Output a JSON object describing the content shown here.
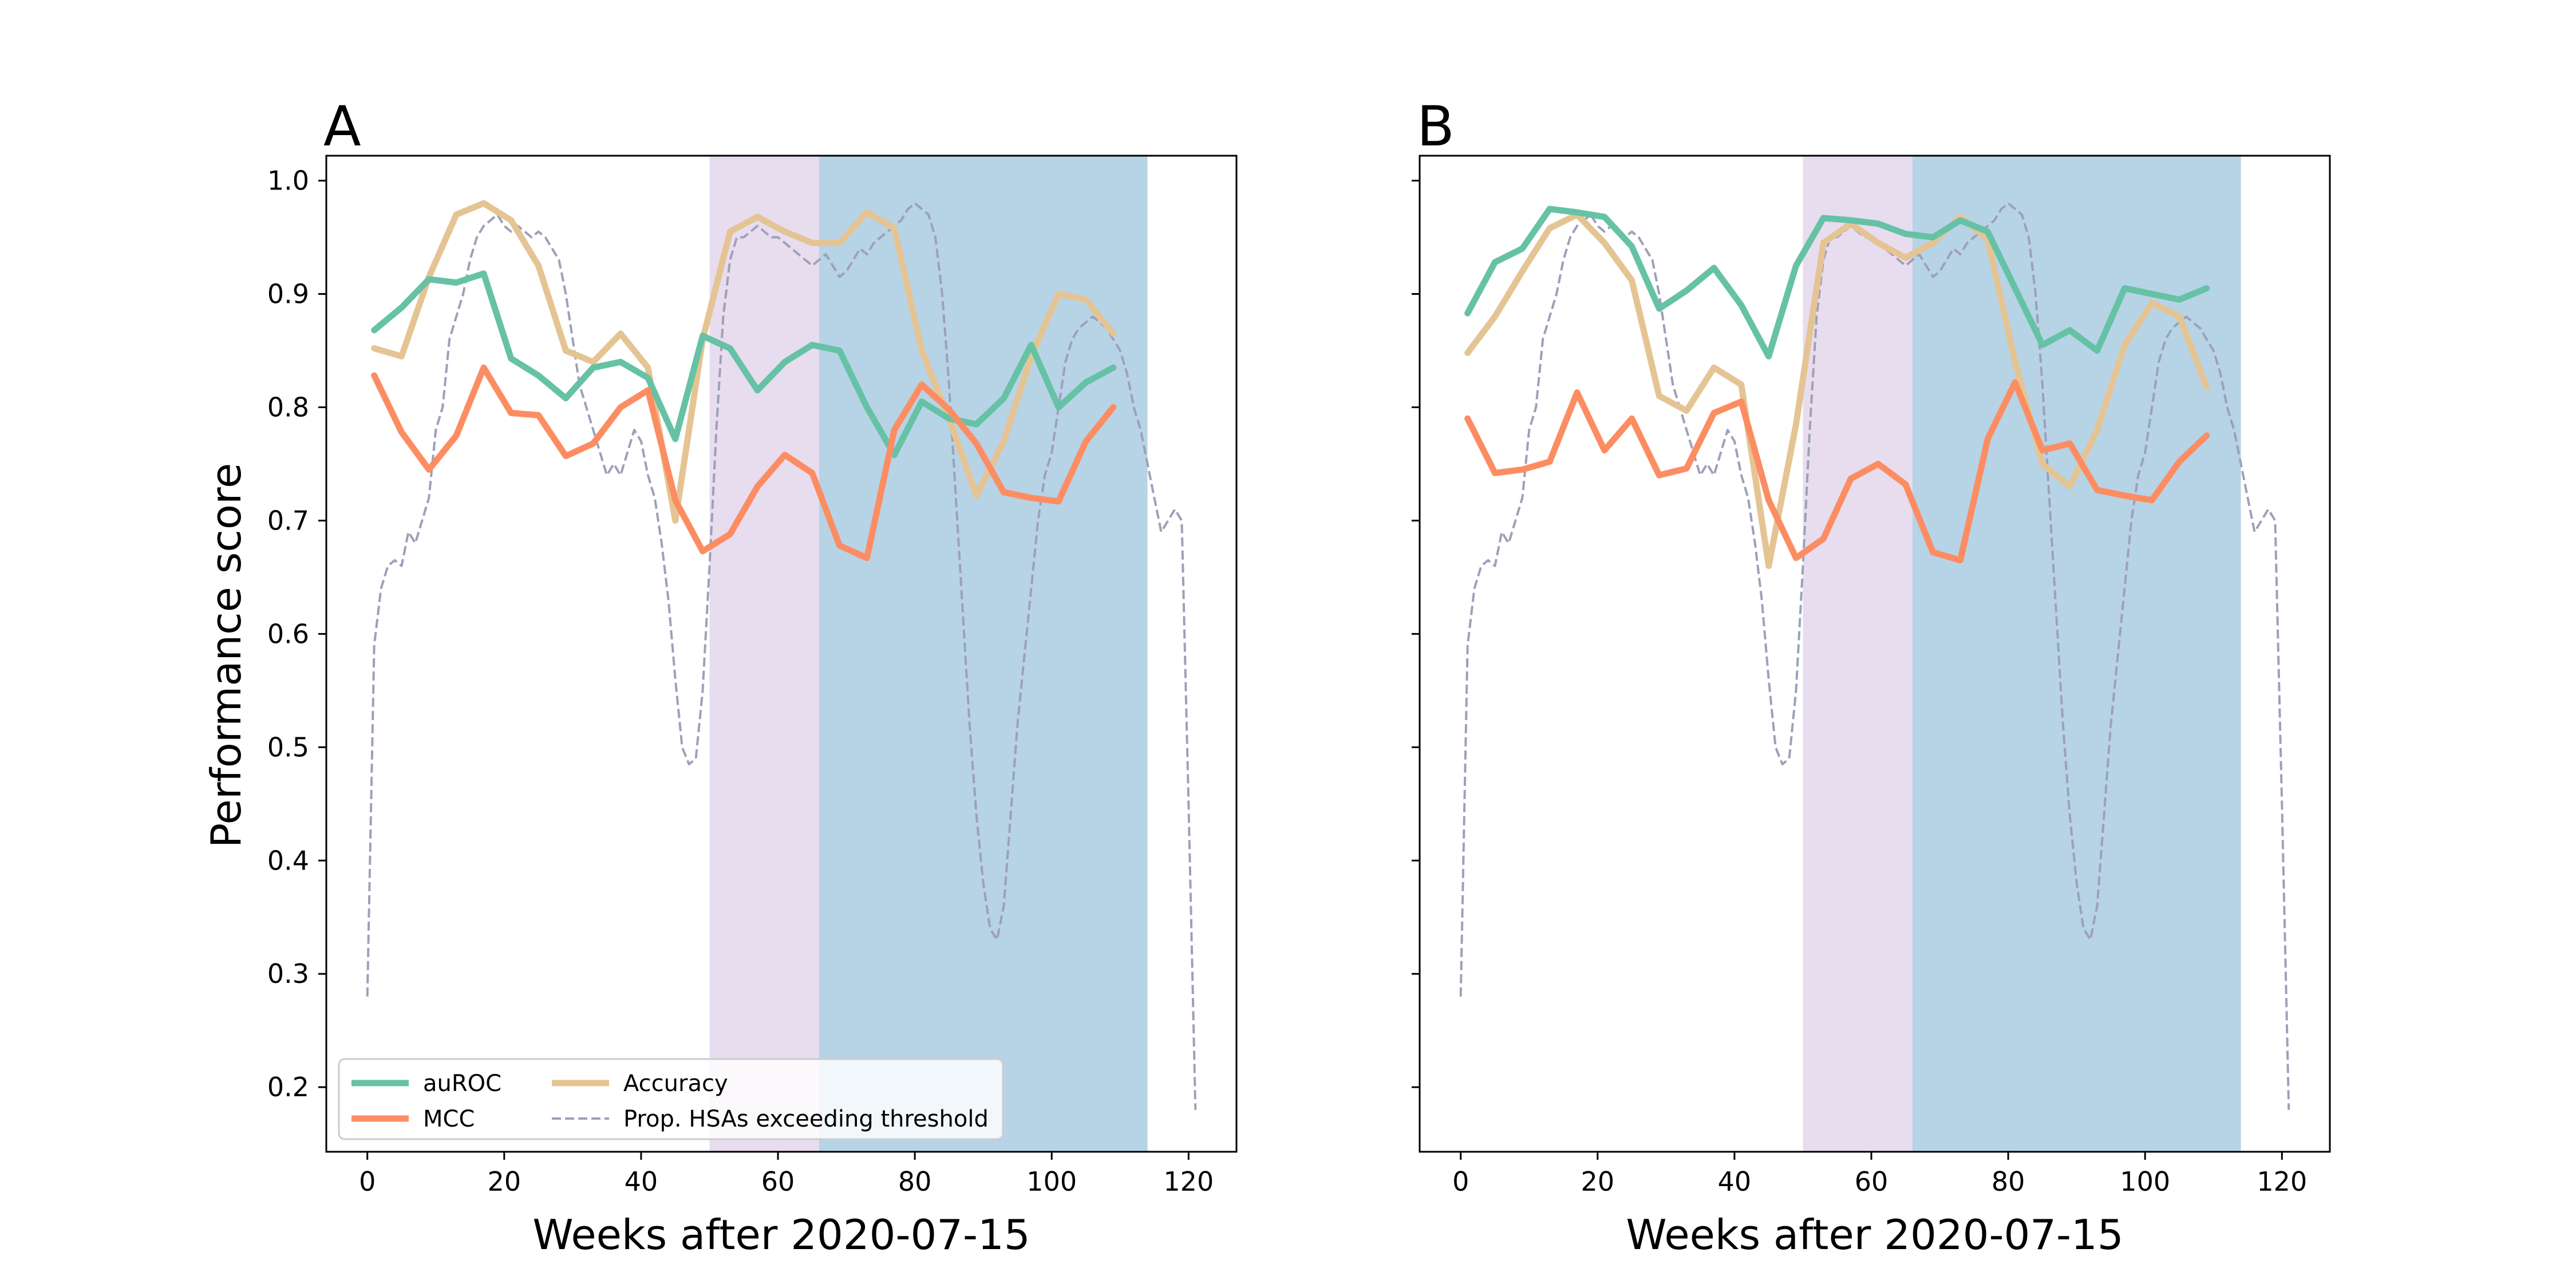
{
  "figure": {
    "ylabel": "Performance score",
    "legend": {
      "placement": "lower-left",
      "entries": [
        {
          "key": "auroc",
          "label": "auROC"
        },
        {
          "key": "mcc",
          "label": "MCC"
        },
        {
          "key": "accuracy",
          "label": "Accuracy"
        },
        {
          "key": "prop",
          "label": "Prop. HSAs exceeding threshold"
        }
      ]
    },
    "colors": {
      "auroc": "#66c2a5",
      "mcc": "#fc8d62",
      "accuracy": "#e5c494",
      "prop": "#9da0b8",
      "span_1": "#e8dcef",
      "span_2": "#b7d3e6"
    }
  },
  "chart_data": [
    {
      "type": "line",
      "panel_label": "A",
      "xlabel": "Weeks after 2020-07-15",
      "ylabel": "Performance score",
      "xlim": [
        -6,
        127
      ],
      "ylim": [
        0.143,
        1.022
      ],
      "xticks": [
        0,
        20,
        40,
        60,
        80,
        100,
        120
      ],
      "yticks": [
        0.2,
        0.3,
        0.4,
        0.5,
        0.6,
        0.7,
        0.8,
        0.9,
        1.0
      ],
      "shaded_spans": [
        {
          "x0": 50,
          "x1": 66,
          "color": "span_1"
        },
        {
          "x0": 66,
          "x1": 114,
          "color": "span_2"
        }
      ],
      "legend_shown": true,
      "series": [
        {
          "key": "prop",
          "style": "dashed",
          "x": [
            0,
            1,
            2,
            3,
            4,
            5,
            6,
            7,
            8,
            9,
            10,
            11,
            12,
            13,
            14,
            15,
            16,
            17,
            18,
            19,
            20,
            21,
            22,
            23,
            24,
            25,
            26,
            27,
            28,
            29,
            30,
            31,
            32,
            33,
            34,
            35,
            36,
            37,
            38,
            39,
            40,
            41,
            42,
            43,
            44,
            45,
            46,
            47,
            48,
            49,
            50,
            51,
            52,
            53,
            54,
            55,
            56,
            57,
            58,
            59,
            60,
            61,
            62,
            63,
            64,
            65,
            66,
            67,
            68,
            69,
            70,
            71,
            72,
            73,
            74,
            75,
            76,
            77,
            78,
            79,
            80,
            81,
            82,
            83,
            84,
            85,
            86,
            87,
            88,
            89,
            90,
            91,
            92,
            93,
            94,
            95,
            96,
            97,
            98,
            99,
            100,
            101,
            102,
            103,
            104,
            105,
            106,
            107,
            108,
            109,
            110,
            111,
            112,
            113,
            114,
            115,
            116,
            117,
            118,
            119,
            120,
            121
          ],
          "values": [
            0.28,
            0.59,
            0.64,
            0.66,
            0.665,
            0.66,
            0.69,
            0.68,
            0.7,
            0.72,
            0.78,
            0.8,
            0.86,
            0.88,
            0.9,
            0.93,
            0.95,
            0.96,
            0.965,
            0.97,
            0.96,
            0.955,
            0.96,
            0.955,
            0.95,
            0.955,
            0.95,
            0.94,
            0.93,
            0.9,
            0.86,
            0.82,
            0.8,
            0.78,
            0.76,
            0.74,
            0.75,
            0.74,
            0.76,
            0.78,
            0.77,
            0.74,
            0.72,
            0.68,
            0.63,
            0.56,
            0.5,
            0.485,
            0.49,
            0.55,
            0.66,
            0.78,
            0.88,
            0.93,
            0.95,
            0.95,
            0.955,
            0.96,
            0.955,
            0.95,
            0.95,
            0.945,
            0.94,
            0.935,
            0.93,
            0.925,
            0.93,
            0.935,
            0.925,
            0.915,
            0.92,
            0.93,
            0.94,
            0.935,
            0.945,
            0.95,
            0.955,
            0.96,
            0.965,
            0.975,
            0.98,
            0.975,
            0.97,
            0.95,
            0.9,
            0.82,
            0.72,
            0.62,
            0.52,
            0.44,
            0.38,
            0.34,
            0.33,
            0.36,
            0.44,
            0.52,
            0.58,
            0.64,
            0.7,
            0.74,
            0.76,
            0.8,
            0.84,
            0.86,
            0.87,
            0.875,
            0.88,
            0.875,
            0.87,
            0.86,
            0.85,
            0.83,
            0.8,
            0.78,
            0.75,
            0.72,
            0.69,
            0.7,
            0.71,
            0.7,
            0.45,
            0.18
          ]
        },
        {
          "key": "accuracy",
          "style": "solid",
          "x": [
            1,
            5,
            9,
            13,
            17,
            21,
            25,
            29,
            33,
            37,
            41,
            45,
            49,
            53,
            57,
            61,
            65,
            69,
            73,
            77,
            81,
            85,
            89,
            93,
            97,
            101,
            105,
            109
          ],
          "values": [
            0.852,
            0.845,
            0.915,
            0.97,
            0.98,
            0.965,
            0.925,
            0.85,
            0.84,
            0.865,
            0.835,
            0.7,
            0.86,
            0.955,
            0.968,
            0.955,
            0.945,
            0.945,
            0.972,
            0.958,
            0.85,
            0.79,
            0.722,
            0.77,
            0.845,
            0.9,
            0.895,
            0.865
          ]
        },
        {
          "key": "auroc",
          "style": "solid",
          "x": [
            1,
            5,
            9,
            13,
            17,
            21,
            25,
            29,
            33,
            37,
            41,
            45,
            49,
            53,
            57,
            61,
            65,
            69,
            73,
            77,
            81,
            85,
            89,
            93,
            97,
            101,
            105,
            109
          ],
          "values": [
            0.868,
            0.888,
            0.913,
            0.91,
            0.918,
            0.843,
            0.828,
            0.808,
            0.835,
            0.84,
            0.826,
            0.772,
            0.863,
            0.852,
            0.815,
            0.84,
            0.855,
            0.85,
            0.8,
            0.758,
            0.805,
            0.79,
            0.785,
            0.808,
            0.855,
            0.8,
            0.822,
            0.835
          ]
        },
        {
          "key": "mcc",
          "style": "solid",
          "x": [
            1,
            5,
            9,
            13,
            17,
            21,
            25,
            29,
            33,
            37,
            41,
            45,
            49,
            53,
            57,
            61,
            65,
            69,
            73,
            77,
            81,
            85,
            89,
            93,
            97,
            101,
            105,
            109
          ],
          "values": [
            0.828,
            0.778,
            0.745,
            0.775,
            0.835,
            0.795,
            0.793,
            0.757,
            0.768,
            0.8,
            0.815,
            0.718,
            0.673,
            0.688,
            0.73,
            0.758,
            0.742,
            0.678,
            0.667,
            0.78,
            0.82,
            0.798,
            0.768,
            0.725,
            0.72,
            0.717,
            0.77,
            0.8
          ]
        }
      ]
    },
    {
      "type": "line",
      "panel_label": "B",
      "xlabel": "Weeks after 2020-07-15",
      "ylabel": "",
      "xlim": [
        -6,
        127
      ],
      "ylim": [
        0.143,
        1.022
      ],
      "xticks": [
        0,
        20,
        40,
        60,
        80,
        100,
        120
      ],
      "yticks": [
        0.2,
        0.3,
        0.4,
        0.5,
        0.6,
        0.7,
        0.8,
        0.9,
        1.0
      ],
      "shaded_spans": [
        {
          "x0": 50,
          "x1": 66,
          "color": "span_1"
        },
        {
          "x0": 66,
          "x1": 114,
          "color": "span_2"
        }
      ],
      "legend_shown": false,
      "series": [
        {
          "key": "prop",
          "style": "dashed",
          "x": [
            0,
            1,
            2,
            3,
            4,
            5,
            6,
            7,
            8,
            9,
            10,
            11,
            12,
            13,
            14,
            15,
            16,
            17,
            18,
            19,
            20,
            21,
            22,
            23,
            24,
            25,
            26,
            27,
            28,
            29,
            30,
            31,
            32,
            33,
            34,
            35,
            36,
            37,
            38,
            39,
            40,
            41,
            42,
            43,
            44,
            45,
            46,
            47,
            48,
            49,
            50,
            51,
            52,
            53,
            54,
            55,
            56,
            57,
            58,
            59,
            60,
            61,
            62,
            63,
            64,
            65,
            66,
            67,
            68,
            69,
            70,
            71,
            72,
            73,
            74,
            75,
            76,
            77,
            78,
            79,
            80,
            81,
            82,
            83,
            84,
            85,
            86,
            87,
            88,
            89,
            90,
            91,
            92,
            93,
            94,
            95,
            96,
            97,
            98,
            99,
            100,
            101,
            102,
            103,
            104,
            105,
            106,
            107,
            108,
            109,
            110,
            111,
            112,
            113,
            114,
            115,
            116,
            117,
            118,
            119,
            120,
            121
          ],
          "values": [
            0.28,
            0.59,
            0.64,
            0.66,
            0.665,
            0.66,
            0.69,
            0.68,
            0.7,
            0.72,
            0.78,
            0.8,
            0.86,
            0.88,
            0.9,
            0.93,
            0.95,
            0.96,
            0.965,
            0.97,
            0.96,
            0.955,
            0.96,
            0.955,
            0.95,
            0.955,
            0.95,
            0.94,
            0.93,
            0.9,
            0.86,
            0.82,
            0.8,
            0.78,
            0.76,
            0.74,
            0.75,
            0.74,
            0.76,
            0.78,
            0.77,
            0.74,
            0.72,
            0.68,
            0.63,
            0.56,
            0.5,
            0.485,
            0.49,
            0.55,
            0.66,
            0.78,
            0.88,
            0.93,
            0.95,
            0.95,
            0.955,
            0.96,
            0.955,
            0.95,
            0.95,
            0.945,
            0.94,
            0.935,
            0.93,
            0.925,
            0.93,
            0.935,
            0.925,
            0.915,
            0.92,
            0.93,
            0.94,
            0.935,
            0.945,
            0.95,
            0.955,
            0.96,
            0.965,
            0.975,
            0.98,
            0.975,
            0.97,
            0.95,
            0.9,
            0.82,
            0.72,
            0.62,
            0.52,
            0.44,
            0.38,
            0.34,
            0.33,
            0.36,
            0.44,
            0.52,
            0.58,
            0.64,
            0.7,
            0.74,
            0.76,
            0.8,
            0.84,
            0.86,
            0.87,
            0.875,
            0.88,
            0.875,
            0.87,
            0.86,
            0.85,
            0.83,
            0.8,
            0.78,
            0.75,
            0.72,
            0.69,
            0.7,
            0.71,
            0.7,
            0.45,
            0.18
          ]
        },
        {
          "key": "accuracy",
          "style": "solid",
          "x": [
            1,
            5,
            9,
            13,
            17,
            21,
            25,
            29,
            33,
            37,
            41,
            45,
            49,
            53,
            57,
            61,
            65,
            69,
            73,
            77,
            81,
            85,
            89,
            93,
            97,
            101,
            105,
            109
          ],
          "values": [
            0.848,
            0.88,
            0.92,
            0.958,
            0.97,
            0.945,
            0.912,
            0.81,
            0.797,
            0.835,
            0.82,
            0.66,
            0.785,
            0.945,
            0.962,
            0.945,
            0.932,
            0.945,
            0.968,
            0.948,
            0.84,
            0.75,
            0.73,
            0.78,
            0.855,
            0.892,
            0.88,
            0.818
          ]
        },
        {
          "key": "auroc",
          "style": "solid",
          "x": [
            1,
            5,
            9,
            13,
            17,
            21,
            25,
            29,
            33,
            37,
            41,
            45,
            49,
            53,
            57,
            61,
            65,
            69,
            73,
            77,
            81,
            85,
            89,
            93,
            97,
            101,
            105,
            109
          ],
          "values": [
            0.883,
            0.928,
            0.94,
            0.975,
            0.972,
            0.968,
            0.942,
            0.887,
            0.903,
            0.923,
            0.89,
            0.845,
            0.925,
            0.967,
            0.965,
            0.962,
            0.953,
            0.95,
            0.965,
            0.955,
            0.905,
            0.855,
            0.868,
            0.85,
            0.905,
            0.9,
            0.895,
            0.905
          ]
        },
        {
          "key": "mcc",
          "style": "solid",
          "x": [
            1,
            5,
            9,
            13,
            17,
            21,
            25,
            29,
            33,
            37,
            41,
            45,
            49,
            53,
            57,
            61,
            65,
            69,
            73,
            77,
            81,
            85,
            89,
            93,
            97,
            101,
            105,
            109
          ],
          "values": [
            0.79,
            0.742,
            0.745,
            0.752,
            0.813,
            0.762,
            0.79,
            0.74,
            0.746,
            0.795,
            0.805,
            0.718,
            0.667,
            0.684,
            0.737,
            0.75,
            0.732,
            0.672,
            0.665,
            0.772,
            0.822,
            0.762,
            0.768,
            0.727,
            0.722,
            0.718,
            0.752,
            0.775
          ]
        }
      ]
    }
  ]
}
